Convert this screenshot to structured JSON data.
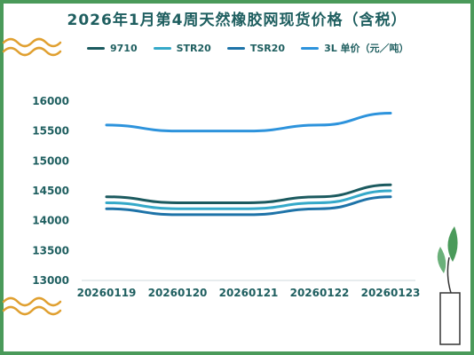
{
  "title": "2026年1月第4周天然橡胶网现货价格（含税）",
  "chart_data": {
    "type": "line",
    "title": "2026年1月第4周天然橡胶网现货价格（含税）",
    "categories": [
      "20260119",
      "20260120",
      "20260121",
      "20260122",
      "20260123"
    ],
    "y_ticks": [
      "16000",
      "15500",
      "15000",
      "14500",
      "14000",
      "13500",
      "13000"
    ],
    "ylim": [
      13000,
      16000
    ],
    "grid": false,
    "legend_position": "top",
    "series": [
      {
        "name": "9710",
        "color": "#1b5a5f",
        "values": [
          14400,
          14300,
          14300,
          14400,
          14600
        ]
      },
      {
        "name": "STR20",
        "color": "#35a9c9",
        "values": [
          14300,
          14200,
          14200,
          14300,
          14500
        ]
      },
      {
        "name": "TSR20",
        "color": "#1e73a8",
        "values": [
          14200,
          14100,
          14100,
          14200,
          14400
        ]
      },
      {
        "name": "3L 单价（元／吨）",
        "color": "#2d93dc",
        "values": [
          15600,
          15500,
          15500,
          15600,
          15800
        ]
      }
    ]
  },
  "colors": {
    "frame": "#4a9a5a",
    "wave": "#e0a030",
    "axis_text": "#1f5f60"
  }
}
